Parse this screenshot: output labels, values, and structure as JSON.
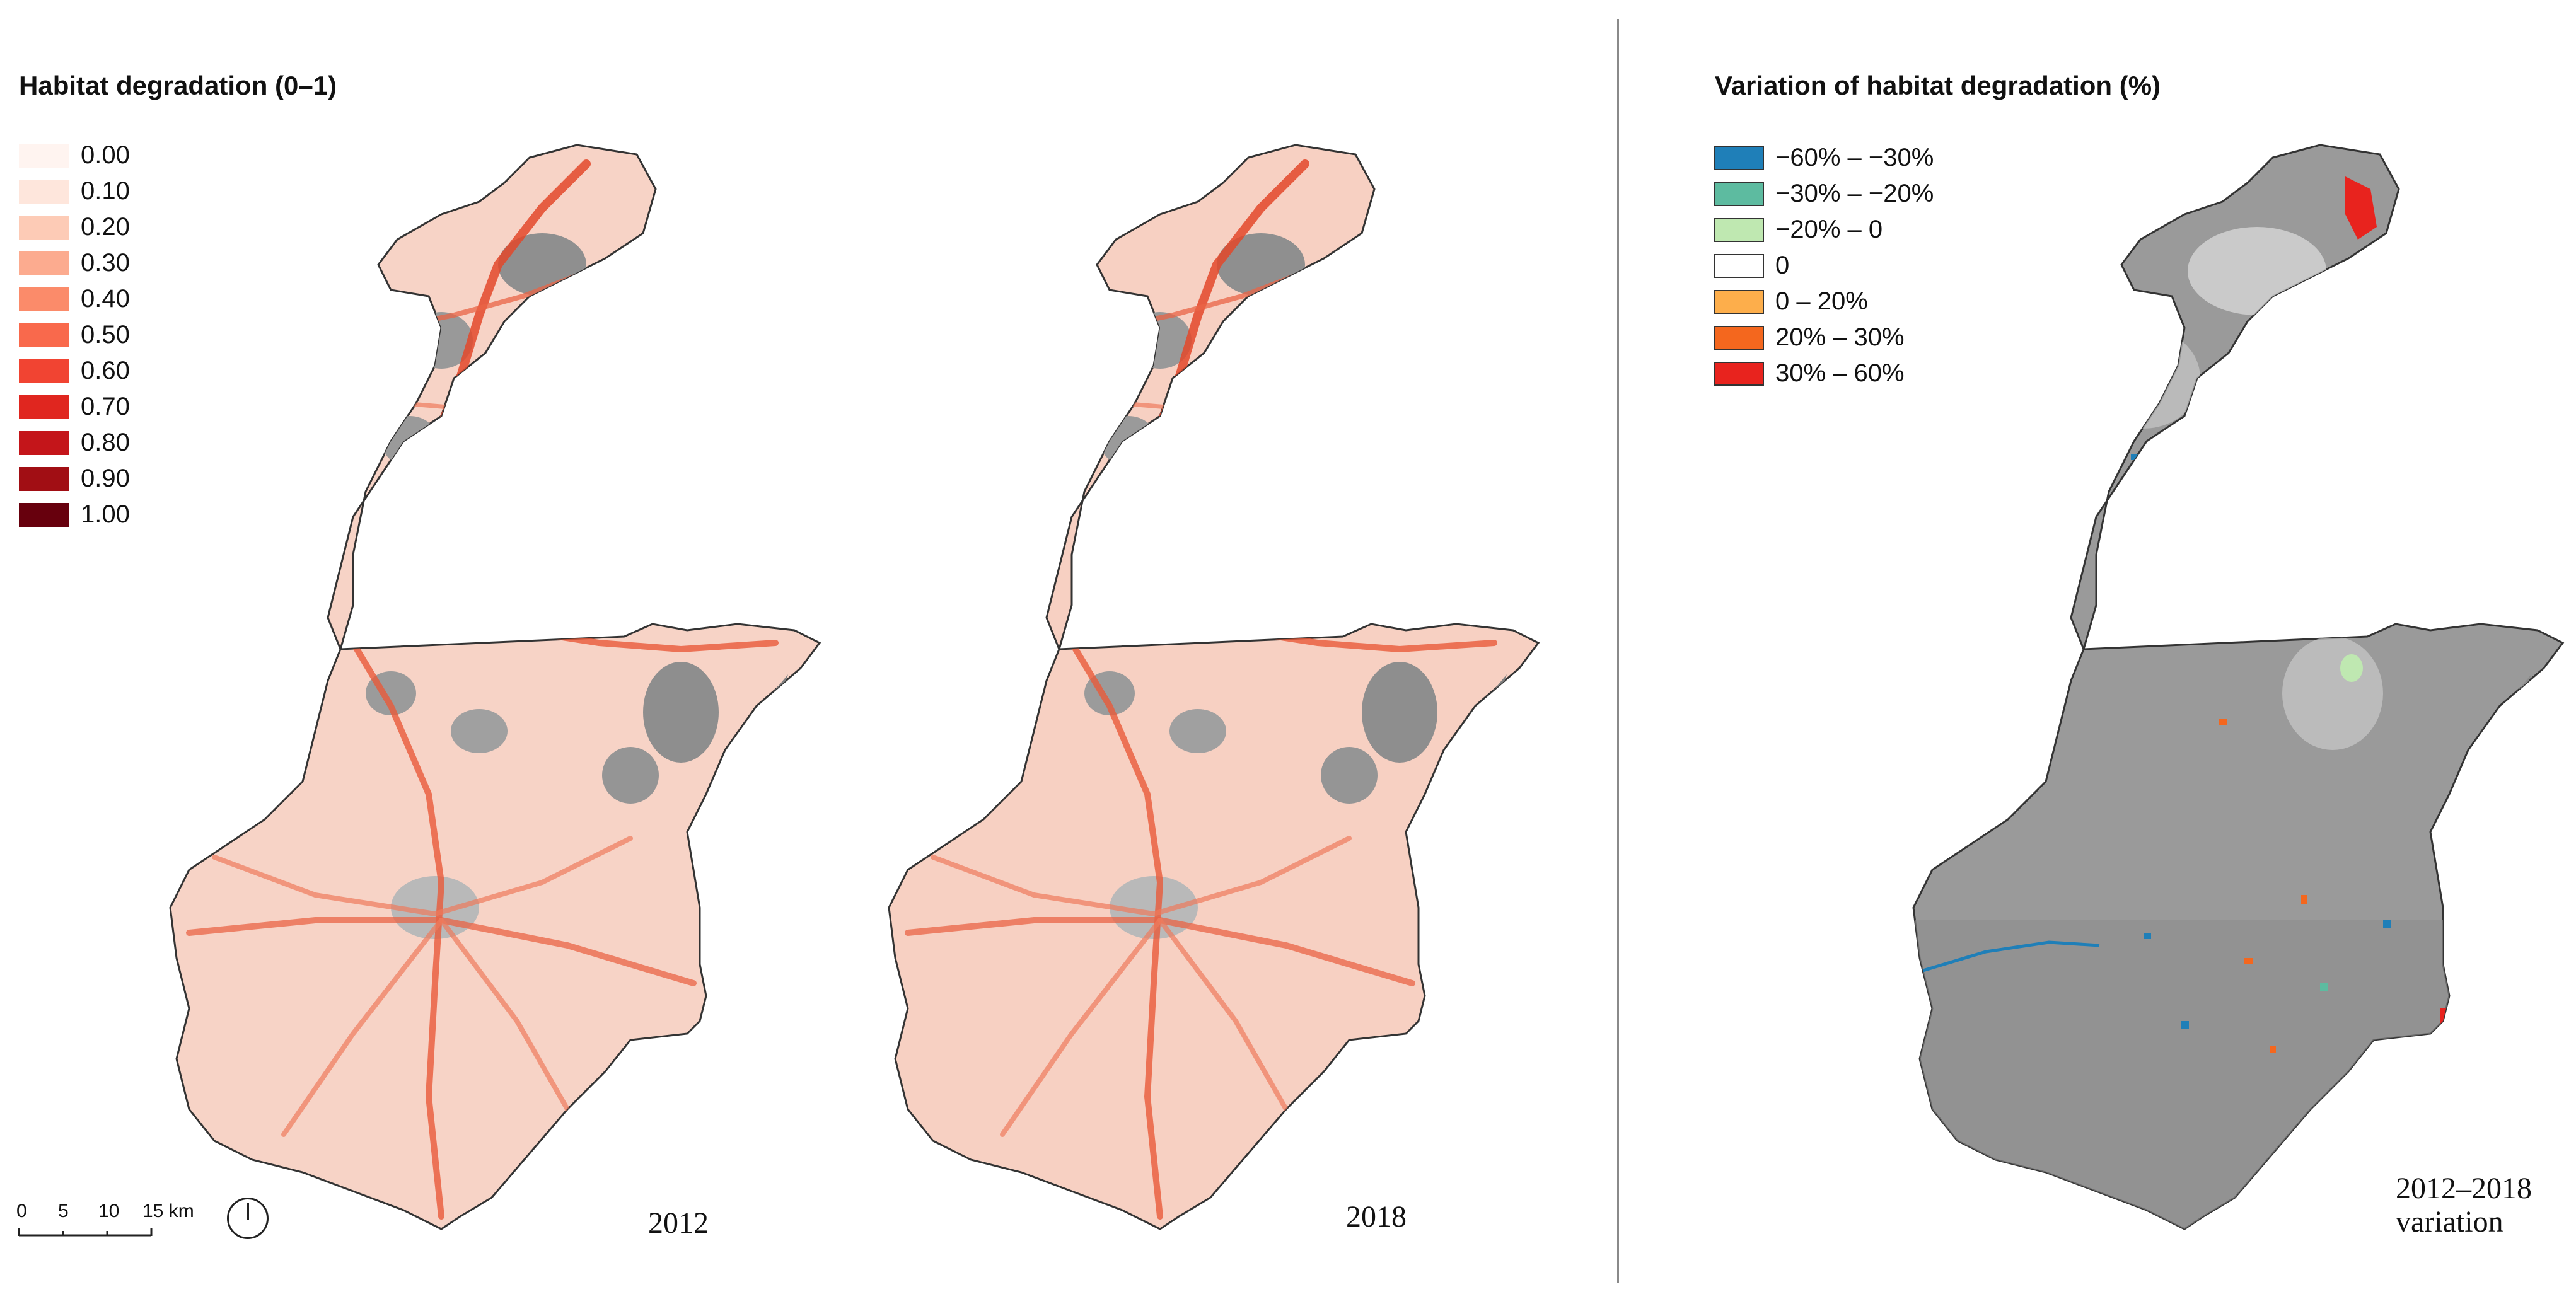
{
  "left_legend": {
    "title": "Habitat degradation (0–1)",
    "items": [
      {
        "label": "0.00",
        "color": "#fff4f0"
      },
      {
        "label": "0.10",
        "color": "#fee6dc"
      },
      {
        "label": "0.20",
        "color": "#fdcbb6"
      },
      {
        "label": "0.30",
        "color": "#fcab8f"
      },
      {
        "label": "0.40",
        "color": "#fb8b6a"
      },
      {
        "label": "0.50",
        "color": "#f9694c"
      },
      {
        "label": "0.60",
        "color": "#f14432"
      },
      {
        "label": "0.70",
        "color": "#e0261f"
      },
      {
        "label": "0.80",
        "color": "#c4151a"
      },
      {
        "label": "0.90",
        "color": "#a10e14"
      },
      {
        "label": "1.00",
        "color": "#67000d"
      }
    ]
  },
  "right_legend": {
    "title": "Variation of habitat degradation (%)",
    "items": [
      {
        "label": "−60% – −30%",
        "color": "#1f7fb8"
      },
      {
        "label": "−30% – −20%",
        "color": "#5dbba0"
      },
      {
        "label": "−20% – 0",
        "color": "#bfe8b1"
      },
      {
        "label": "0",
        "color": "#ffffff"
      },
      {
        "label": "0 – 20%",
        "color": "#fdae4b"
      },
      {
        "label": "20% – 30%",
        "color": "#f4671e"
      },
      {
        "label": "30% – 60%",
        "color": "#e8231e"
      }
    ]
  },
  "maps": {
    "map_2012": {
      "label": "2012"
    },
    "map_2018": {
      "label": "2018"
    },
    "map_variation": {
      "label_line1": "2012–2018",
      "label_line2": "variation"
    }
  },
  "scalebar": {
    "ticks": [
      "0",
      "5",
      "10",
      "15 km"
    ]
  },
  "colors": {
    "relief_gray": "#8f8f8f",
    "relief_light": "#d4d4d4",
    "degradation_low": "#f9cfc2",
    "degradation_high": "#e3482a",
    "urban_gray": "#b9b9b9"
  }
}
